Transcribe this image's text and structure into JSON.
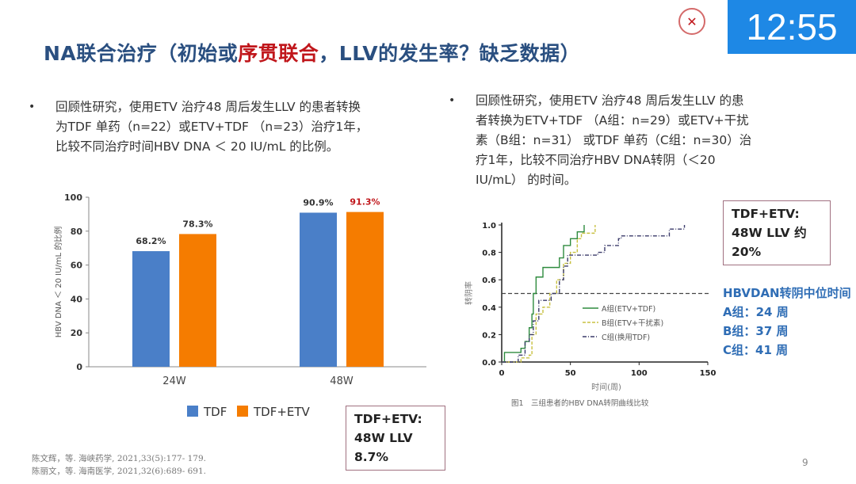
{
  "slide": {
    "title_part1": "NA联合治疗（初始或",
    "title_highlight": "序贯联合",
    "title_part2": "，LLV的发生率？缺乏数据）",
    "clock": "12:55",
    "logo_text": "✕",
    "page_number": "9",
    "colors": {
      "title": "#2a4f80",
      "highlight": "#c0161b",
      "clock_bg": "#1e88e5",
      "tdf": "#4a7fc8",
      "tdf_etv": "#f57c00",
      "accent_text": "#2f6db5"
    }
  },
  "left": {
    "bullet": "•",
    "lines": [
      "回顾性研究，使用ETV 治疗48 周后发生LLV 的患者转换",
      "为TDF 单药（n=22）或ETV+TDF （n=23）治疗1年，",
      "比较不同治疗时间HBV DNA ＜ 20 IU/mL 的比例。"
    ],
    "note_line1": "TDF+ETV:",
    "note_line2": "48W LLV 8.7%",
    "references": [
      "陈文辉，等. 海峡药学, 2021,33(5):177- 179.",
      "陈丽文，等. 海南医学, 2021,32(6):689- 691."
    ]
  },
  "right": {
    "bullet": "•",
    "lines": [
      "回顾性研究，使用ETV 治疗48 周后发生LLV 的患",
      "者转换为ETV+TDF （A组：n=29）或ETV+干扰",
      "素（B组：n=31） 或TDF 单药（C组：n=30）治",
      "疗1年，比较不同治疗HBV DNA转阴（＜20",
      "IU/mL） 的时间。"
    ],
    "note_line1": "TDF+ETV:",
    "note_line2": "48W LLV 约20%",
    "median_title": "HBVDAN转阴中位时间",
    "medians": [
      "A组：24 周",
      "B组：37 周",
      "C组：41 周"
    ]
  },
  "chart_data": [
    {
      "type": "bar",
      "categories": [
        "24W",
        "48W"
      ],
      "series": [
        {
          "name": "TDF",
          "values": [
            68.2,
            90.9
          ],
          "labels": [
            "68.2%",
            "90.9%"
          ],
          "color": "#4a7fc8"
        },
        {
          "name": "TDF+ETV",
          "values": [
            78.3,
            91.3
          ],
          "labels": [
            "78.3%",
            "91.3%"
          ],
          "color": "#f57c00",
          "label_colors": [
            "#333333",
            "#c0161b"
          ]
        }
      ],
      "ylabel": "HBV DNA ＜ 20 IU/mL 的比例",
      "ylim": [
        0,
        100
      ],
      "yticks": [
        "0",
        "20",
        "40",
        "60",
        "80",
        "100"
      ],
      "grid": false,
      "legend": "bottom"
    },
    {
      "type": "line",
      "step": true,
      "xlabel": "时间(周)",
      "ylabel": "转阴率",
      "xlim": [
        0,
        150
      ],
      "ylim": [
        0,
        1.0
      ],
      "xticks": [
        "0",
        "50",
        "100",
        "150"
      ],
      "yticks": [
        "0.0",
        "0.2",
        "0.4",
        "0.6",
        "0.8",
        "1.0"
      ],
      "reference_line": 0.5,
      "caption": "图1　三组患者的HBV DNA转阴曲线比较",
      "legend": "center",
      "series": [
        {
          "name": "A组(ETV+TDF)",
          "color": "#2e8b3e",
          "dash": "solid",
          "points": [
            [
              0,
              0
            ],
            [
              2,
              0.07
            ],
            [
              13,
              0.07
            ],
            [
              14,
              0.1
            ],
            [
              17,
              0.15
            ],
            [
              20,
              0.25
            ],
            [
              22,
              0.35
            ],
            [
              23,
              0.5
            ],
            [
              25,
              0.62
            ],
            [
              30,
              0.69
            ],
            [
              40,
              0.69
            ],
            [
              42,
              0.76
            ],
            [
              45,
              0.85
            ],
            [
              50,
              0.9
            ],
            [
              55,
              0.95
            ],
            [
              60,
              1.0
            ]
          ]
        },
        {
          "name": "B组(ETV+干扰素)",
          "color": "#c8c040",
          "dash": "dash",
          "points": [
            [
              0,
              0
            ],
            [
              14,
              0.03
            ],
            [
              20,
              0.05
            ],
            [
              22,
              0.2
            ],
            [
              25,
              0.35
            ],
            [
              30,
              0.4
            ],
            [
              35,
              0.5
            ],
            [
              40,
              0.6
            ],
            [
              45,
              0.72
            ],
            [
              50,
              0.8
            ],
            [
              55,
              0.9
            ],
            [
              58,
              0.94
            ],
            [
              68,
              0.94
            ],
            [
              68,
              1.0
            ]
          ]
        },
        {
          "name": "C组(换用TDF)",
          "color": "#3a3a6a",
          "dash": "dashdot",
          "points": [
            [
              0,
              0
            ],
            [
              12,
              0.05
            ],
            [
              17,
              0.15
            ],
            [
              20,
              0.2
            ],
            [
              23,
              0.3
            ],
            [
              27,
              0.45
            ],
            [
              33,
              0.45
            ],
            [
              36,
              0.5
            ],
            [
              42,
              0.6
            ],
            [
              45,
              0.7
            ],
            [
              48,
              0.78
            ],
            [
              60,
              0.78
            ],
            [
              70,
              0.8
            ],
            [
              75,
              0.85
            ],
            [
              85,
              0.9
            ],
            [
              87,
              0.92
            ],
            [
              120,
              0.92
            ],
            [
              122,
              0.97
            ],
            [
              133,
              1.0
            ]
          ]
        }
      ]
    }
  ]
}
